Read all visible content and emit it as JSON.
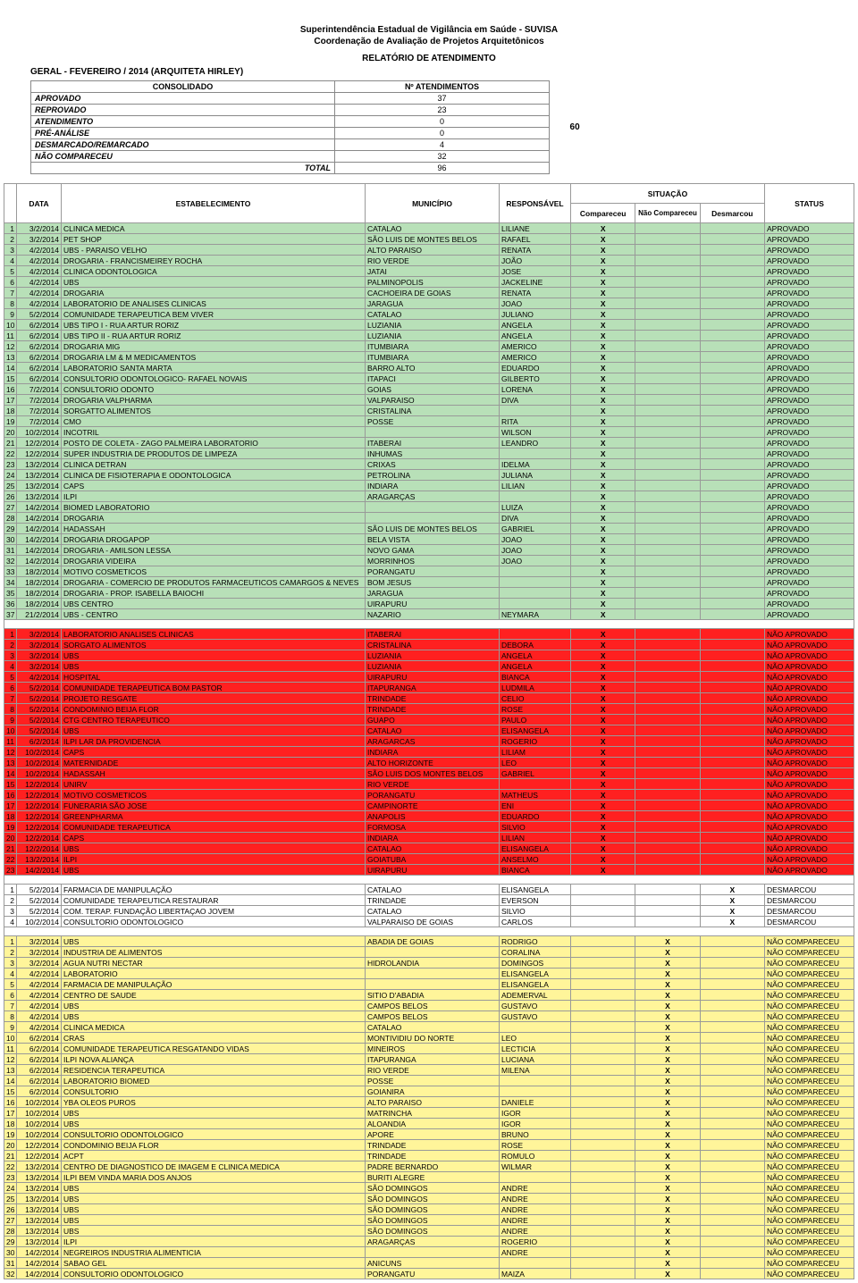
{
  "header": {
    "org1": "Superintendência Estadual de Vigilância em Saúde - SUVISA",
    "org2": "Coordenação de Avaliação de Projetos Arquitetônicos",
    "title": "RELATÓRIO DE ATENDIMENTO",
    "scope": "GERAL - FEVEREIRO / 2014 (ARQUITETA HIRLEY)"
  },
  "consolidado": {
    "head_left": "CONSOLIDADO",
    "head_right": "Nº ATENDIMENTOS",
    "rows": [
      {
        "label": "APROVADO",
        "value": "37"
      },
      {
        "label": "REPROVADO",
        "value": "23"
      },
      {
        "label": "ATENDIMENTO",
        "value": "0"
      },
      {
        "label": "PRÉ-ANÁLISE",
        "value": "0"
      },
      {
        "label": "DESMARCADO/REMARCADO",
        "value": "4"
      },
      {
        "label": "NÃO COMPARECEU",
        "value": "32"
      }
    ],
    "total_label": "TOTAL",
    "total_value": "96",
    "side_total": "60"
  },
  "columns": {
    "data": "DATA",
    "est": "ESTABELECIMENTO",
    "mun": "MUNICÍPIO",
    "resp": "RESPONSÁVEL",
    "sit_group": "SITUAÇÃO",
    "sit1": "Compareceu",
    "sit2": "Não Compareceu",
    "sit3": "Desmarcou",
    "status": "STATUS"
  },
  "status_labels": {
    "aprovado": "APROVADO",
    "nao_aprovado": "NÃO APROVADO",
    "desmarcou": "DESMARCOU",
    "nao_compareceu": "NÃO COMPARECEU"
  },
  "sections": [
    {
      "class": "sec-aprovado",
      "status": "APROVADO",
      "sit_col": 1,
      "rows": [
        [
          "3/2/2014",
          "CLINICA MEDICA",
          "CATALAO",
          "LILIANE"
        ],
        [
          "3/2/2014",
          "PET SHOP",
          "SÃO LUIS DE MONTES BELOS",
          "RAFAEL"
        ],
        [
          "4/2/2014",
          "UBS - PARAISO VELHO",
          "ALTO PARAISO",
          "RENATA"
        ],
        [
          "4/2/2014",
          "DROGARIA - FRANCISMEIREY ROCHA",
          "RIO VERDE",
          "JOÃO"
        ],
        [
          "4/2/2014",
          "CLINICA ODONTOLOGICA",
          "JATAI",
          "JOSE"
        ],
        [
          "4/2/2014",
          "UBS",
          "PALMINOPOLIS",
          "JACKELINE"
        ],
        [
          "4/2/2014",
          "DROGARIA",
          "CACHOEIRA DE GOIAS",
          "RENATA"
        ],
        [
          "4/2/2014",
          "LABORATORIO DE ANALISES CLINICAS",
          "JARAGUA",
          "JOAO"
        ],
        [
          "5/2/2014",
          "COMUNIDADE TERAPEUTICA BEM VIVER",
          "CATALAO",
          "JULIANO"
        ],
        [
          "6/2/2014",
          "UBS TIPO I - RUA ARTUR RORIZ",
          "LUZIANIA",
          "ANGELA"
        ],
        [
          "6/2/2014",
          "UBS TIPO II - RUA ARTUR RORIZ",
          "LUZIANIA",
          "ANGELA"
        ],
        [
          "6/2/2014",
          "DROGARIA MIG",
          "ITUMBIARA",
          "AMERICO"
        ],
        [
          "6/2/2014",
          "DROGARIA LM & M MEDICAMENTOS",
          "ITUMBIARA",
          "AMERICO"
        ],
        [
          "6/2/2014",
          "LABORATORIO SANTA MARTA",
          "BARRO ALTO",
          "EDUARDO"
        ],
        [
          "6/2/2014",
          "CONSULTORIO ODONTOLOGICO- RAFAEL NOVAIS",
          "ITAPACI",
          "GILBERTO"
        ],
        [
          "7/2/2014",
          "CONSULTORIO ODONTO",
          "GOIAS",
          "LORENA"
        ],
        [
          "7/2/2014",
          "DROGARIA VALPHARMA",
          "VALPARAISO",
          "DIVA"
        ],
        [
          "7/2/2014",
          "SORGATTO ALIMENTOS",
          "CRISTALINA",
          ""
        ],
        [
          "7/2/2014",
          "CMO",
          "POSSE",
          "RITA"
        ],
        [
          "10/2/2014",
          "INCOTRIL",
          "",
          "WILSON"
        ],
        [
          "12/2/2014",
          "POSTO DE COLETA - ZAGO PALMEIRA LABORATORIO",
          "ITABERAI",
          "LEANDRO"
        ],
        [
          "12/2/2014",
          "SUPER INDUSTRIA DE PRODUTOS DE LIMPEZA",
          "INHUMAS",
          ""
        ],
        [
          "13/2/2014",
          "CLINICA DETRAN",
          "CRIXAS",
          "IDELMA"
        ],
        [
          "13/2/2014",
          "CLINICA DE FISIOTERAPIA E ODONTOLOGICA",
          "PETROLINA",
          "JULIANA"
        ],
        [
          "13/2/2014",
          "CAPS",
          "INDIARA",
          "LILIAN"
        ],
        [
          "13/2/2014",
          "ILPI",
          "ARAGARÇAS",
          ""
        ],
        [
          "14/2/2014",
          "BIOMED LABORATORIO",
          "",
          "LUIZA"
        ],
        [
          "14/2/2014",
          "DROGARIA",
          "",
          "DIVA"
        ],
        [
          "14/2/2014",
          "HADASSAH",
          "SÃO LUIS DE MONTES BELOS",
          "GABRIEL"
        ],
        [
          "14/2/2014",
          "DROGARIA DROGAPOP",
          "BELA VISTA",
          "JOAO"
        ],
        [
          "14/2/2014",
          "DROGARIA - AMILSON LESSA",
          "NOVO GAMA",
          "JOAO"
        ],
        [
          "14/2/2014",
          "DROGARIA VIDEIRA",
          "MORRINHOS",
          "JOAO"
        ],
        [
          "18/2/2014",
          "MOTIVO COSMETICOS",
          "PORANGATU",
          ""
        ],
        [
          "18/2/2014",
          "DROGARIA - COMERCIO DE PRODUTOS FARMACEUTICOS CAMARGOS & NEVES",
          "BOM JESUS",
          ""
        ],
        [
          "18/2/2014",
          "DROGARIA - PROP. ISABELLA BAIOCHI",
          "JARAGUA",
          ""
        ],
        [
          "18/2/2014",
          "UBS CENTRO",
          "UIRAPURU",
          ""
        ],
        [
          "21/2/2014",
          "UBS - CENTRO",
          "NAZARIO",
          "NEYMARA"
        ]
      ]
    },
    {
      "class": "sec-reprovado",
      "status": "NÃO APROVADO",
      "sit_col": 1,
      "rows": [
        [
          "3/2/2014",
          "LABORATORIO ANALISES CLINICAS",
          "ITABERAI",
          ""
        ],
        [
          "3/2/2014",
          "SORGATO ALIMENTOS",
          "CRISTALINA",
          "DEBORA"
        ],
        [
          "3/2/2014",
          "UBS",
          "LUZIANIA",
          "ANGELA"
        ],
        [
          "3/2/2014",
          "UBS",
          "LUZIANIA",
          "ANGELA"
        ],
        [
          "4/2/2014",
          "HOSPITAL",
          "UIRAPURU",
          "BIANCA"
        ],
        [
          "5/2/2014",
          "COMUNIDADE TERAPEUTICA BOM PASTOR",
          "ITAPURANGA",
          "LUDMILA"
        ],
        [
          "5/2/2014",
          "PROJETO RESGATE",
          "TRINDADE",
          "CELIO"
        ],
        [
          "5/2/2014",
          "CONDOMINIO BEIJA FLOR",
          "TRINDADE",
          "ROSE"
        ],
        [
          "5/2/2014",
          "CTG CENTRO TERAPEUTICO",
          "GUAPO",
          "PAULO"
        ],
        [
          "5/2/2014",
          "UBS",
          "CATALAO",
          "ELISANGELA"
        ],
        [
          "6/2/2014",
          "ILPI LAR DA PROVIDENCIA",
          "ARAGARCAS",
          "ROGERIO"
        ],
        [
          "10/2/2014",
          "CAPS",
          "INDIARA",
          "LILIAM"
        ],
        [
          "10/2/2014",
          "MATERNIDADE",
          "ALTO HORIZONTE",
          "LEO"
        ],
        [
          "10/2/2014",
          "HADASSAH",
          "SÃO LUIS DOS MONTES BELOS",
          "GABRIEL"
        ],
        [
          "12/2/2014",
          "UNIRV",
          "RIO VERDE",
          ""
        ],
        [
          "12/2/2014",
          "MOTIVO COSMETICOS",
          "PORANGATU",
          "MATHEUS"
        ],
        [
          "12/2/2014",
          "FUNERARIA SÃO JOSE",
          "CAMPINORTE",
          "ENI"
        ],
        [
          "12/2/2014",
          "GREENPHARMA",
          "ANAPOLIS",
          "EDUARDO"
        ],
        [
          "12/2/2014",
          "COMUNIDADE TERAPEUTICA",
          "FORMOSA",
          "SILVIO"
        ],
        [
          "12/2/2014",
          "CAPS",
          "INDIARA",
          "LILIAN"
        ],
        [
          "12/2/2014",
          "UBS",
          "CATALAO",
          "ELISANGELA"
        ],
        [
          "13/2/2014",
          "ILPI",
          "GOIATUBA",
          "ANSELMO"
        ],
        [
          "14/2/2014",
          "UBS",
          "UIRAPURU",
          "BIANCA"
        ]
      ]
    },
    {
      "class": "sec-desmarcou",
      "status": "DESMARCOU",
      "sit_col": 3,
      "rows": [
        [
          "5/2/2014",
          "FARMACIA DE MANIPULAÇÃO",
          "CATALAO",
          "ELISANGELA"
        ],
        [
          "5/2/2014",
          "COMUNIDADE TERAPEUTICA RESTAURAR",
          "TRINDADE",
          "EVERSON"
        ],
        [
          "5/2/2014",
          "COM. TERAP. FUNDAÇÃO LIBERTAÇAO JOVEM",
          "CATALAO",
          "SILVIO"
        ],
        [
          "10/2/2014",
          "CONSULTORIO ODONTOLOGICO",
          "VALPARAISO DE GOIAS",
          "CARLOS"
        ]
      ]
    },
    {
      "class": "sec-naocomp",
      "status": "NÃO COMPARECEU",
      "sit_col": 2,
      "rows": [
        [
          "3/2/2014",
          "UBS",
          "ABADIA DE GOIAS",
          "RODRIGO"
        ],
        [
          "3/2/2014",
          "INDUSTRIA DE ALIMENTOS",
          "",
          "CORALINA"
        ],
        [
          "3/2/2014",
          "AGUA NUTRI NECTAR",
          "HIDROLANDIA",
          "DOMINGOS"
        ],
        [
          "4/2/2014",
          "LABORATORIO",
          "",
          "ELISANGELA"
        ],
        [
          "4/2/2014",
          "FARMACIA DE MANIPULAÇÃO",
          "",
          "ELISANGELA"
        ],
        [
          "4/2/2014",
          "CENTRO DE SAUDE",
          "SITIO D'ABADIA",
          "ADEMERVAL"
        ],
        [
          "4/2/2014",
          "UBS",
          "CAMPOS BELOS",
          "GUSTAVO"
        ],
        [
          "4/2/2014",
          "UBS",
          "CAMPOS BELOS",
          "GUSTAVO"
        ],
        [
          "4/2/2014",
          "CLINICA MEDICA",
          "CATALAO",
          ""
        ],
        [
          "6/2/2014",
          "CRAS",
          "MONTIVIDIU DO NORTE",
          "LEO"
        ],
        [
          "6/2/2014",
          "COMUNIDADE TERAPEUTICA RESGATANDO VIDAS",
          "MINEIROS",
          "LECTICIA"
        ],
        [
          "6/2/2014",
          "ILPI NOVA ALIANÇA",
          "ITAPURANGA",
          "LUCIANA"
        ],
        [
          "6/2/2014",
          "RESIDENCIA TERAPEUTICA",
          "RIO VERDE",
          "MILENA"
        ],
        [
          "6/2/2014",
          "LABORATORIO BIOMED",
          "POSSE",
          ""
        ],
        [
          "6/2/2014",
          "CONSULTORIO",
          "GOIANIRA",
          ""
        ],
        [
          "10/2/2014",
          "YBA OLEOS PUROS",
          "ALTO PARAISO",
          "DANIELE"
        ],
        [
          "10/2/2014",
          "UBS",
          "MATRINCHA",
          "IGOR"
        ],
        [
          "10/2/2014",
          "UBS",
          "ALOANDIA",
          "IGOR"
        ],
        [
          "10/2/2014",
          "CONSULTORIO ODONTOLOGICO",
          "APORE",
          "BRUNO"
        ],
        [
          "12/2/2014",
          "CONDOMINIO BEIJA FLOR",
          "TRINDADE",
          "ROSE"
        ],
        [
          "12/2/2014",
          "ACPT",
          "TRINDADE",
          "ROMULO"
        ],
        [
          "13/2/2014",
          "CENTRO DE DIAGNOSTICO DE IMAGEM E CLINICA MEDICA",
          "PADRE BERNARDO",
          "WILMAR"
        ],
        [
          "13/2/2014",
          "ILPI BEM VINDA MARIA DOS ANJOS",
          "BURITI ALEGRE",
          ""
        ],
        [
          "13/2/2014",
          "UBS",
          "SÃO DOMINGOS",
          "ANDRE"
        ],
        [
          "13/2/2014",
          "UBS",
          "SÃO DOMINGOS",
          "ANDRE"
        ],
        [
          "13/2/2014",
          "UBS",
          "SÃO DOMINGOS",
          "ANDRE"
        ],
        [
          "13/2/2014",
          "UBS",
          "SÃO DOMINGOS",
          "ANDRE"
        ],
        [
          "13/2/2014",
          "UBS",
          "SÃO DOMINGOS",
          "ANDRE"
        ],
        [
          "13/2/2014",
          "ILPI",
          "ARAGARÇAS",
          "ROGERIO"
        ],
        [
          "14/2/2014",
          "NEGREIROS INDUSTRIA ALIMENTICIA",
          "",
          "ANDRE"
        ],
        [
          "14/2/2014",
          "SABAO GEL",
          "ANICUNS",
          ""
        ],
        [
          "14/2/2014",
          "CONSULTORIO ODONTOLOGICO",
          "PORANGATU",
          "MAIZA"
        ]
      ]
    }
  ],
  "colors": {
    "aprovado_bg": "#b8e0b8",
    "reprovado_bg": "#ff2020",
    "naocomp_bg": "#fff59a",
    "border": "#999999"
  }
}
